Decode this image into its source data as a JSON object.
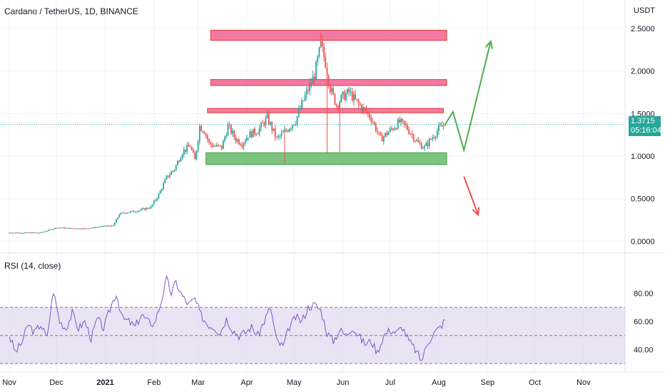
{
  "header": {
    "title": "Cardano / TetherUS, 1D, BINANCE",
    "currency": "USDT"
  },
  "price_tag": {
    "price": "1.3715",
    "countdown": "05:16:04"
  },
  "rsi": {
    "title": "RSI (14, close)"
  },
  "colors": {
    "up": "#26a69a",
    "down": "#ef5350",
    "rsi_line": "#7e57c2",
    "rsi_band": "#d9d2ec",
    "resistance": "#f06292",
    "support": "#66bb6a",
    "arrow_up": "#4caf50",
    "arrow_down": "#ef5350"
  },
  "chart_data": [
    {
      "type": "candlestick",
      "title": "Cardano / TetherUS, 1D, BINANCE",
      "y_ticks": [
        "2.5000",
        "2.0000",
        "1.5000",
        "1.0000",
        "0.5000",
        "0.0000"
      ],
      "ylim": [
        -0.08,
        2.6
      ],
      "x_ticks": [
        "Nov",
        "Dec",
        "2021",
        "Feb",
        "Mar",
        "Apr",
        "May",
        "Jun",
        "Jul",
        "Aug",
        "Sep",
        "Oct",
        "Nov"
      ],
      "x_tick_days": [
        0,
        30,
        61,
        92,
        120,
        151,
        181,
        212,
        242,
        273,
        304,
        334,
        365
      ],
      "last_price": 1.3715,
      "close_points": [
        [
          0,
          0.1
        ],
        [
          10,
          0.1
        ],
        [
          20,
          0.1
        ],
        [
          30,
          0.16
        ],
        [
          40,
          0.15
        ],
        [
          50,
          0.15
        ],
        [
          61,
          0.18
        ],
        [
          66,
          0.18
        ],
        [
          70,
          0.32
        ],
        [
          75,
          0.34
        ],
        [
          82,
          0.36
        ],
        [
          90,
          0.4
        ],
        [
          95,
          0.55
        ],
        [
          100,
          0.75
        ],
        [
          105,
          0.85
        ],
        [
          110,
          1.05
        ],
        [
          115,
          1.12
        ],
        [
          118,
          0.95
        ],
        [
          121,
          1.35
        ],
        [
          124,
          1.3
        ],
        [
          127,
          1.15
        ],
        [
          130,
          1.12
        ],
        [
          135,
          1.1
        ],
        [
          139,
          1.35
        ],
        [
          144,
          1.2
        ],
        [
          148,
          1.15
        ],
        [
          152,
          1.25
        ],
        [
          158,
          1.3
        ],
        [
          164,
          1.45
        ],
        [
          170,
          1.2
        ],
        [
          176,
          1.3
        ],
        [
          182,
          1.42
        ],
        [
          188,
          1.7
        ],
        [
          194,
          1.95
        ],
        [
          198,
          2.3
        ],
        [
          201,
          2.1
        ],
        [
          204,
          1.8
        ],
        [
          208,
          1.6
        ],
        [
          212,
          1.7
        ],
        [
          216,
          1.75
        ],
        [
          220,
          1.65
        ],
        [
          225,
          1.55
        ],
        [
          230,
          1.45
        ],
        [
          236,
          1.2
        ],
        [
          242,
          1.3
        ],
        [
          248,
          1.4
        ],
        [
          252,
          1.35
        ],
        [
          256,
          1.25
        ],
        [
          260,
          1.15
        ],
        [
          264,
          1.1
        ],
        [
          268,
          1.2
        ],
        [
          273,
          1.32
        ],
        [
          277,
          1.3715
        ]
      ],
      "zones": [
        {
          "kind": "resistance",
          "from": 2.36,
          "to": 2.48
        },
        {
          "kind": "resistance",
          "from": 1.83,
          "to": 1.9
        },
        {
          "kind": "resistance",
          "from": 1.51,
          "to": 1.56
        },
        {
          "kind": "support",
          "from": 0.9,
          "to": 1.04
        }
      ],
      "projection_up": [
        [
          277,
          1.37
        ],
        [
          282,
          1.52
        ],
        [
          289,
          1.07
        ],
        [
          306,
          2.35
        ]
      ],
      "projection_down": [
        [
          289,
          0.76
        ],
        [
          298,
          0.31
        ]
      ]
    },
    {
      "type": "line",
      "title": "RSI (14, close)",
      "y_ticks": [
        "80.00",
        "60.00",
        "40.00"
      ],
      "ylim": [
        25,
        95
      ],
      "band": [
        30,
        70
      ],
      "midline": 50,
      "series": [
        {
          "values": [
            [
              0,
              50
            ],
            [
              4,
              38
            ],
            [
              8,
              45
            ],
            [
              12,
              58
            ],
            [
              16,
              52
            ],
            [
              20,
              58
            ],
            [
              24,
              48
            ],
            [
              28,
              82
            ],
            [
              32,
              60
            ],
            [
              36,
              55
            ],
            [
              40,
              66
            ],
            [
              44,
              55
            ],
            [
              48,
              60
            ],
            [
              52,
              48
            ],
            [
              56,
              62
            ],
            [
              60,
              55
            ],
            [
              65,
              72
            ],
            [
              68,
              80
            ],
            [
              72,
              62
            ],
            [
              76,
              60
            ],
            [
              80,
              56
            ],
            [
              84,
              65
            ],
            [
              88,
              60
            ],
            [
              92,
              58
            ],
            [
              96,
              72
            ],
            [
              100,
              90
            ],
            [
              103,
              80
            ],
            [
              106,
              88
            ],
            [
              110,
              78
            ],
            [
              114,
              72
            ],
            [
              118,
              76
            ],
            [
              122,
              64
            ],
            [
              126,
              58
            ],
            [
              130,
              56
            ],
            [
              134,
              52
            ],
            [
              138,
              62
            ],
            [
              142,
              54
            ],
            [
              146,
              50
            ],
            [
              150,
              52
            ],
            [
              154,
              56
            ],
            [
              158,
              50
            ],
            [
              162,
              60
            ],
            [
              166,
              70
            ],
            [
              170,
              46
            ],
            [
              174,
              42
            ],
            [
              178,
              56
            ],
            [
              182,
              63
            ],
            [
              186,
              60
            ],
            [
              190,
              70
            ],
            [
              194,
              72
            ],
            [
              198,
              68
            ],
            [
              202,
              52
            ],
            [
              206,
              46
            ],
            [
              210,
              54
            ],
            [
              214,
              50
            ],
            [
              218,
              56
            ],
            [
              222,
              50
            ],
            [
              226,
              44
            ],
            [
              230,
              46
            ],
            [
              234,
              38
            ],
            [
              238,
              50
            ],
            [
              242,
              54
            ],
            [
              246,
              52
            ],
            [
              250,
              56
            ],
            [
              254,
              46
            ],
            [
              258,
              40
            ],
            [
              262,
              32
            ],
            [
              266,
              45
            ],
            [
              270,
              52
            ],
            [
              274,
              56
            ],
            [
              277,
              61
            ]
          ]
        }
      ]
    }
  ]
}
